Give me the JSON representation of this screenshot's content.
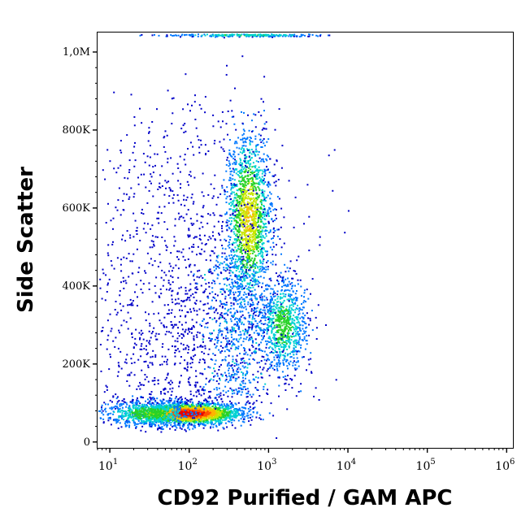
{
  "chart_data": {
    "type": "scatter",
    "title": "",
    "xlabel": "CD92 Purified / GAM APC",
    "ylabel": "Side Scatter",
    "x_scale": "log",
    "xlim": [
      7,
      1200000
    ],
    "ylim": [
      -15000,
      1050000
    ],
    "grid": false,
    "x_ticks": [
      {
        "value": 10,
        "base": "10",
        "exp": "1"
      },
      {
        "value": 100,
        "base": "10",
        "exp": "2"
      },
      {
        "value": 1000,
        "base": "10",
        "exp": "3"
      },
      {
        "value": 10000,
        "base": "10",
        "exp": "4"
      },
      {
        "value": 100000,
        "base": "10",
        "exp": "5"
      },
      {
        "value": 1000000,
        "base": "10",
        "exp": "6"
      }
    ],
    "y_ticks": [
      {
        "value": 0,
        "label": "0"
      },
      {
        "value": 200000,
        "label": "200K"
      },
      {
        "value": 400000,
        "label": "400K"
      },
      {
        "value": 600000,
        "label": "600K"
      },
      {
        "value": 800000,
        "label": "800K"
      },
      {
        "value": 1000000,
        "label": "1,0M"
      }
    ],
    "density_colormap": [
      "#0000c8",
      "#0078ff",
      "#00d2d2",
      "#28d228",
      "#c8e600",
      "#ffb400",
      "#ff5000",
      "#e60000"
    ],
    "populations": [
      {
        "x_center": 100,
        "y_center": 75000,
        "x_log_spread": 0.32,
        "y_spread": 14000,
        "peak_density": 1.0
      },
      {
        "x_center": 30,
        "y_center": 75000,
        "x_log_spread": 0.28,
        "y_spread": 16000,
        "peak_density": 0.45
      },
      {
        "x_center": 550,
        "y_center": 575000,
        "x_log_spread": 0.14,
        "y_spread": 110000,
        "peak_density": 0.62
      },
      {
        "x_center": 1500,
        "y_center": 300000,
        "x_log_spread": 0.15,
        "y_spread": 60000,
        "peak_density": 0.4
      },
      {
        "x_center": 500,
        "y_center": 1045000,
        "x_log_spread": 0.5,
        "y_spread": 2000,
        "peak_density": 0.35
      }
    ]
  }
}
